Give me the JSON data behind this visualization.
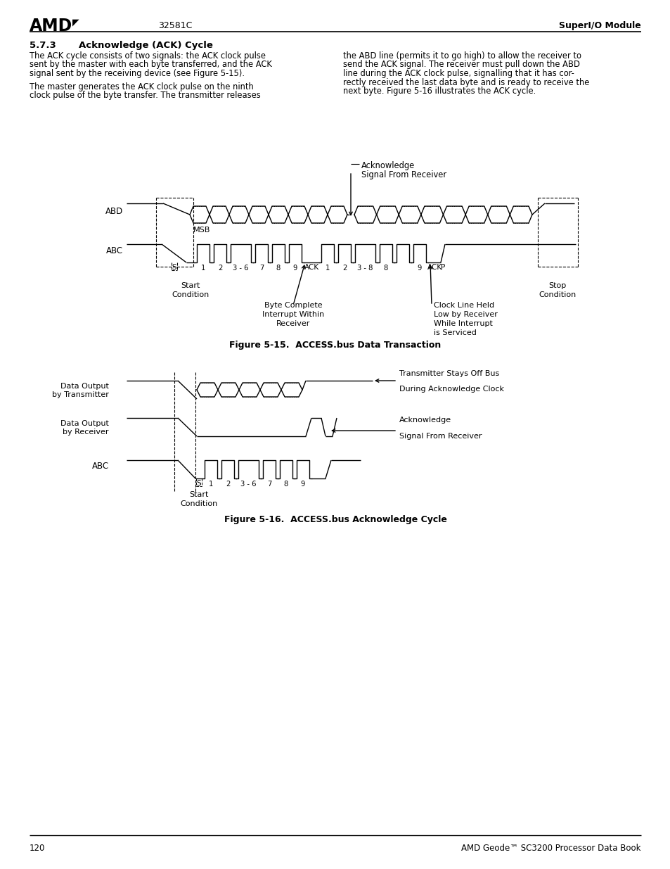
{
  "bg_color": "#ffffff",
  "header": {
    "doc_number": "32581C",
    "module": "SuperI/O Module",
    "footer_page": "120",
    "footer_doc": "AMD Geode™ SC3200 Processor Data Book"
  },
  "section_title": "5.7.3    Acknowledge (ACK) Cycle",
  "body_left_lines": [
    "The ACK cycle consists of two signals: the ACK clock pulse",
    "sent by the master with each byte transferred, and the ACK",
    "signal sent by the receiving device (see Figure 5-15).",
    "",
    "The master generates the ACK clock pulse on the ninth",
    "clock pulse of the byte transfer. The transmitter releases"
  ],
  "body_right_lines": [
    "the ABD line (permits it to go high) to allow the receiver to",
    "send the ACK signal. The receiver must pull down the ABD",
    "line during the ACK clock pulse, signalling that it has cor-",
    "rectly received the last data byte and is ready to receive the",
    "next byte. Figure 5-16 illustrates the ACK cycle."
  ],
  "fig1_caption": "Figure 5-15.  ACCESS.bus Data Transaction",
  "fig2_caption": "Figure 5-16.  ACCESS.bus Acknowledge Cycle"
}
